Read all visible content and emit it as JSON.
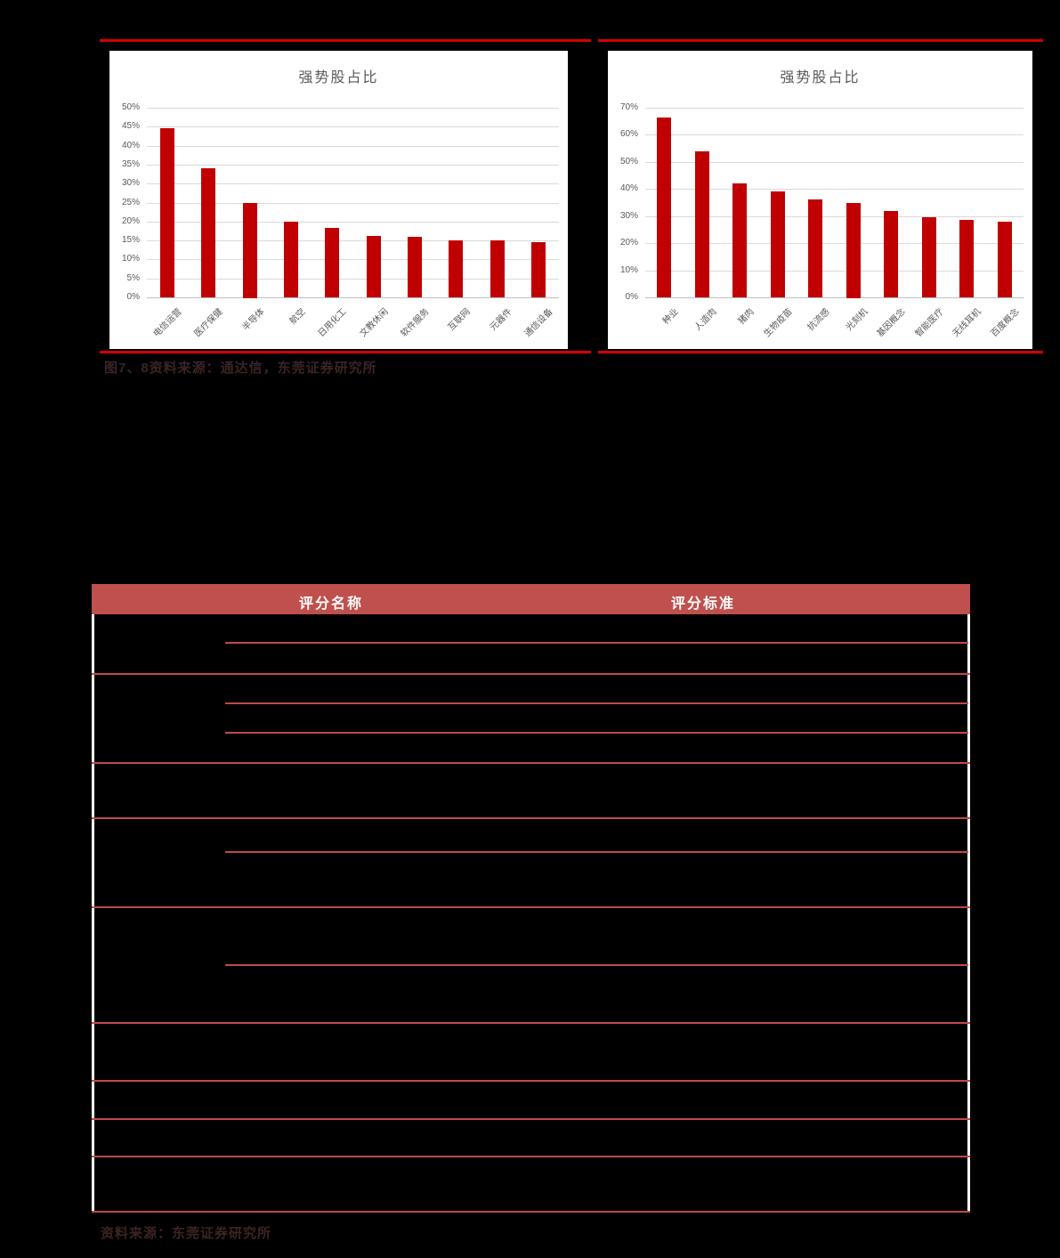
{
  "page": {
    "background": "#000000"
  },
  "figures": {
    "separator_color": "#d80000",
    "caption": "图7、8资料来源：通达信，东莞证券研究所"
  },
  "chart_data": [
    {
      "type": "bar",
      "title": "强势股占比",
      "categories": [
        "电信运营",
        "医疗保健",
        "半导体",
        "航空",
        "日用化工",
        "文教休闲",
        "软件服务",
        "互联网",
        "元器件",
        "通信设备"
      ],
      "values": [
        44.5,
        34,
        25,
        20,
        18.3,
        16.3,
        16,
        15,
        15,
        14.6
      ],
      "xlabel": "",
      "ylabel": "",
      "ylim": [
        0,
        50
      ],
      "ytick_step": 5,
      "tick_suffix": "%",
      "grid": true,
      "legend": "none",
      "bar_color": "#c00000",
      "title_color": "#595959",
      "axis_text_color": "#595959",
      "background": "#ffffff"
    },
    {
      "type": "bar",
      "title": "强势股占比",
      "categories": [
        "种业",
        "人造肉",
        "猪肉",
        "生物疫苗",
        "抗流感",
        "光刻机",
        "基因概念",
        "智能医疗",
        "无线耳机",
        "百度概念"
      ],
      "values": [
        66.5,
        54,
        42,
        39,
        36,
        35,
        32,
        29.5,
        28.5,
        28
      ],
      "xlabel": "",
      "ylabel": "",
      "ylim": [
        0,
        70
      ],
      "ytick_step": 10,
      "tick_suffix": "%",
      "grid": true,
      "legend": "none",
      "bar_color": "#c00000",
      "title_color": "#595959",
      "axis_text_color": "#595959",
      "background": "#ffffff"
    }
  ],
  "table": {
    "columns": [
      "评分名称",
      "评分标准"
    ],
    "header_bg": "#c0504d",
    "header_text_color": "#ffffff",
    "line_color": "#be4b48",
    "side_border_color": "#ffffff"
  },
  "footer": {
    "source": "资料来源：东莞证券研究所"
  }
}
